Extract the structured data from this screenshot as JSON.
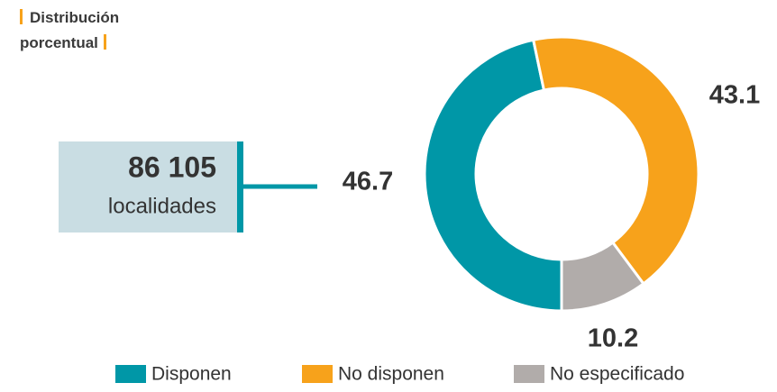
{
  "chart_data": {
    "type": "donut",
    "title": "Distribución porcentual",
    "annotations": [
      "86 105",
      "localidades"
    ],
    "categories": [
      "Disponen",
      "No disponen",
      "No especificado"
    ],
    "values": [
      46.7,
      43.1,
      10.2
    ],
    "colors": [
      "#0097a7",
      "#f7a21b",
      "#b1acaa"
    ],
    "legend": "bottom"
  }
}
